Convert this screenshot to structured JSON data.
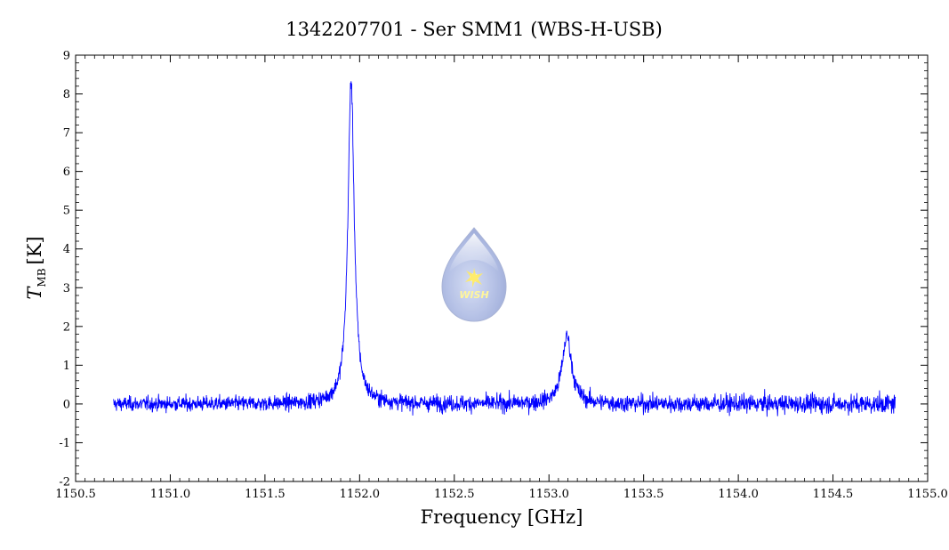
{
  "chart_data": {
    "type": "line",
    "title": "1342207701 - Ser SMM1 (WBS-H-USB)",
    "xlabel": "Frequency [GHz]",
    "ylabel_main": "T",
    "ylabel_sub": "MB",
    "ylabel_unit": "[K]",
    "xlim": [
      1150.5,
      1155.0
    ],
    "ylim": [
      -2,
      9
    ],
    "xticks": [
      "1150.5",
      "1151.0",
      "1151.5",
      "1152.0",
      "1152.5",
      "1153.0",
      "1153.5",
      "1154.0",
      "1154.5",
      "1155.0"
    ],
    "yticks": [
      "-2",
      "-1",
      "0",
      "1",
      "2",
      "3",
      "4",
      "5",
      "6",
      "7",
      "8",
      "9"
    ],
    "grid": false,
    "series": [
      {
        "color": "#0000ff",
        "x_range": [
          1150.7,
          1154.83
        ],
        "noise_rms": 0.13,
        "lines": [
          {
            "center": 1151.955,
            "peak": 8.35,
            "width": 0.02
          },
          {
            "center": 1153.095,
            "peak": 1.75,
            "width": 0.03
          }
        ]
      }
    ]
  },
  "watermark": {
    "text": "WISH"
  }
}
